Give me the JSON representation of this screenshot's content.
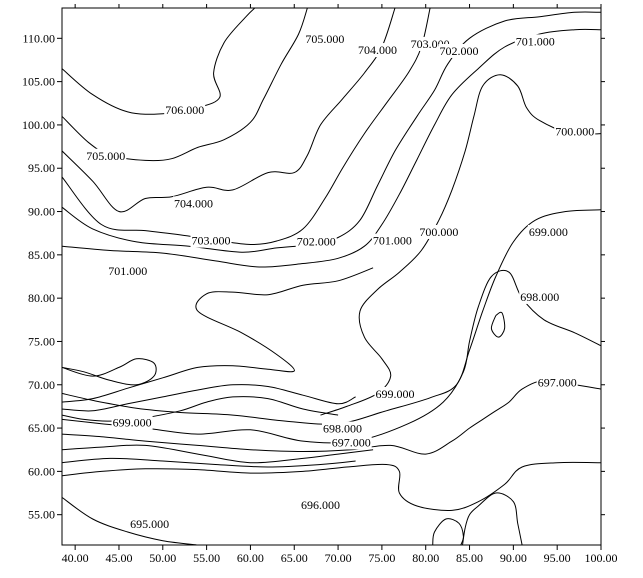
{
  "chart_data": {
    "type": "contour",
    "xlim": [
      38.5,
      100
    ],
    "ylim": [
      51.5,
      113.5
    ],
    "x_ticks": [
      "40.00",
      "45.00",
      "50.00",
      "55.00",
      "60.00",
      "65.00",
      "70.00",
      "75.00",
      "80.00",
      "85.00",
      "90.00",
      "95.00",
      "100.00"
    ],
    "y_ticks": [
      "55.00",
      "60.00",
      "65.00",
      "70.00",
      "75.00",
      "80.00",
      "85.00",
      "90.00",
      "95.00",
      "100.00",
      "105.00",
      "110.00"
    ],
    "x_tick_values": [
      40,
      45,
      50,
      55,
      60,
      65,
      70,
      75,
      80,
      85,
      90,
      95,
      100
    ],
    "y_tick_values": [
      55,
      60,
      65,
      70,
      75,
      80,
      85,
      90,
      95,
      100,
      105,
      110
    ],
    "grid": false,
    "contours": [
      {
        "level": "706.000",
        "points": [
          [
            38.5,
            106.5
          ],
          [
            42,
            103.5
          ],
          [
            46,
            101.5
          ],
          [
            50,
            101.3
          ],
          [
            54,
            102
          ],
          [
            56.5,
            103.2
          ],
          [
            55.8,
            106
          ],
          [
            57,
            109.5
          ],
          [
            59.5,
            112.5
          ],
          [
            60.5,
            113.5
          ]
        ],
        "label_at": [
          52.5,
          101.6
        ]
      },
      {
        "level": "705.000",
        "points": [
          [
            38.5,
            101
          ],
          [
            41.5,
            98
          ],
          [
            44,
            96.5
          ],
          [
            48,
            95.9
          ],
          [
            51,
            96.1
          ],
          [
            54,
            97.4
          ],
          [
            57,
            98.3
          ],
          [
            60,
            100.3
          ],
          [
            61.5,
            103
          ],
          [
            63.5,
            107
          ],
          [
            65.5,
            110.5
          ],
          [
            66.5,
            113.5
          ]
        ],
        "label_at": [
          43.5,
          96.3
        ],
        "label2": "705.000",
        "label2_at": [
          68.5,
          109.8
        ]
      },
      {
        "level": "704.000",
        "points": [
          [
            38.5,
            97
          ],
          [
            42,
            93.5
          ],
          [
            45,
            90
          ],
          [
            48,
            91.5
          ],
          [
            51,
            91.7
          ],
          [
            55,
            92.8
          ],
          [
            58,
            92.5
          ],
          [
            62,
            94.5
          ],
          [
            65,
            94.5
          ],
          [
            66.5,
            96.5
          ],
          [
            68,
            100
          ],
          [
            70.5,
            103
          ],
          [
            73,
            106
          ],
          [
            75,
            109
          ],
          [
            76.5,
            113.5
          ]
        ],
        "label_at": [
          53.5,
          90.8
        ],
        "label2": "704.000",
        "label2_at": [
          74.5,
          108.5
        ]
      },
      {
        "level": "703.000",
        "points": [
          [
            38.5,
            94
          ],
          [
            43,
            88.5
          ],
          [
            48,
            87.8
          ],
          [
            52,
            87.3
          ],
          [
            56,
            86.7
          ],
          [
            60,
            86.2
          ],
          [
            63,
            86.6
          ],
          [
            66,
            88
          ],
          [
            68.5,
            91.5
          ],
          [
            70.5,
            95
          ],
          [
            73,
            99
          ],
          [
            75.5,
            102.5
          ],
          [
            78,
            106
          ],
          [
            79.5,
            109
          ],
          [
            80.5,
            113.5
          ]
        ],
        "label_at": [
          55.5,
          86.5
        ],
        "label2": "703.000",
        "label2_at": [
          80.5,
          109.2
        ]
      },
      {
        "level": "702.000",
        "points": [
          [
            38.5,
            90.5
          ],
          [
            42,
            88
          ],
          [
            47,
            86.5
          ],
          [
            53,
            86
          ],
          [
            59,
            85.3
          ],
          [
            63,
            85.8
          ],
          [
            67,
            86.2
          ],
          [
            70,
            87
          ],
          [
            72.5,
            89
          ],
          [
            74.5,
            93
          ],
          [
            76.5,
            97
          ],
          [
            79,
            101
          ],
          [
            81,
            104
          ],
          [
            82.5,
            107
          ],
          [
            85,
            110
          ],
          [
            89,
            112
          ],
          [
            93,
            112.5
          ],
          [
            97,
            113
          ],
          [
            100,
            113
          ]
        ],
        "label_at": [
          67.5,
          86.4
        ],
        "label2": "702.000",
        "label2_at": [
          83.8,
          108.4
        ]
      },
      {
        "level": "701.000",
        "points": [
          [
            38.5,
            86
          ],
          [
            44,
            85.5
          ],
          [
            50,
            85.2
          ],
          [
            56,
            84.3
          ],
          [
            61,
            83.6
          ],
          [
            66,
            84
          ],
          [
            70,
            84.6
          ],
          [
            73,
            86
          ],
          [
            75,
            88.5
          ],
          [
            77,
            92
          ],
          [
            79,
            96
          ],
          [
            81,
            100
          ],
          [
            83,
            103.5
          ],
          [
            86,
            106.5
          ],
          [
            89,
            109
          ],
          [
            93,
            110.5
          ],
          [
            97,
            111
          ],
          [
            100,
            111
          ]
        ],
        "label_at": [
          92.5,
          109.5
        ],
        "label2": "701.000",
        "label2_at": [
          76.2,
          86.5
        ],
        "label3": "701.000",
        "label3_at": [
          46,
          83
        ]
      },
      {
        "level": "700.000",
        "points": [
          [
            100,
            99
          ],
          [
            96.5,
            99
          ],
          [
            93,
            100.5
          ],
          [
            91.5,
            102
          ],
          [
            90.5,
            104.5
          ],
          [
            88.5,
            105.8
          ],
          [
            86.5,
            104.5
          ],
          [
            85.5,
            101
          ],
          [
            84.5,
            97
          ],
          [
            83,
            92.5
          ],
          [
            81.5,
            89
          ],
          [
            79.5,
            85.5
          ],
          [
            77,
            83
          ],
          [
            74.5,
            81
          ],
          [
            72.5,
            78.5
          ],
          [
            73,
            75.5
          ],
          [
            75,
            73
          ],
          [
            76,
            71
          ],
          [
            74.5,
            69
          ],
          [
            71,
            67.5
          ],
          [
            68,
            66.5
          ]
        ],
        "label_at": [
          97,
          99.1
        ],
        "label2": "700.000",
        "label2_at": [
          81.5,
          87.5
        ]
      },
      {
        "level": "699.000",
        "points": [
          [
            100,
            90.2
          ],
          [
            96,
            90
          ],
          [
            92.5,
            89
          ],
          [
            90,
            86.5
          ],
          [
            88,
            82.5
          ],
          [
            86.5,
            78.5
          ],
          [
            85,
            74
          ],
          [
            83.5,
            70
          ],
          [
            80.5,
            68.5
          ],
          [
            75.5,
            67
          ],
          [
            70,
            65.5
          ],
          [
            64,
            65.8
          ],
          [
            58,
            66.5
          ],
          [
            52,
            66.8
          ],
          [
            47,
            67.3
          ],
          [
            42,
            68.2
          ],
          [
            38.5,
            69
          ]
        ],
        "label_at": [
          94,
          87.5
        ],
        "label2": "699.000",
        "label2_at": [
          76.5,
          68.8
        ],
        "label3": "699.000",
        "label3_at": [
          46.5,
          65.5
        ]
      },
      {
        "level": "698.000",
        "points": [
          [
            100,
            74.5
          ],
          [
            97,
            76
          ],
          [
            93.5,
            77.5
          ],
          [
            91,
            80
          ],
          [
            89.5,
            83
          ],
          [
            87.5,
            82.5
          ],
          [
            86,
            79
          ],
          [
            85,
            75
          ],
          [
            84.3,
            71.5
          ],
          [
            82,
            68
          ],
          [
            78,
            65.5
          ],
          [
            72,
            63.5
          ],
          [
            66,
            63.5
          ],
          [
            60,
            64.8
          ],
          [
            54,
            64.3
          ],
          [
            48,
            65
          ],
          [
            43,
            65.5
          ],
          [
            38.5,
            66
          ]
        ],
        "label_at": [
          93,
          80
        ],
        "label2": "698.000",
        "label2_at": [
          70.5,
          64.8
        ]
      },
      {
        "level": "697.000",
        "points": [
          [
            100,
            69.5
          ],
          [
            97,
            70
          ],
          [
            93.5,
            70.5
          ],
          [
            91,
            69.5
          ],
          [
            89.5,
            68
          ],
          [
            88,
            67
          ],
          [
            86.5,
            66
          ],
          [
            85,
            65
          ],
          [
            83,
            63.5
          ],
          [
            80,
            62
          ],
          [
            76,
            63
          ],
          [
            71.5,
            62.5
          ],
          [
            66,
            62.3
          ],
          [
            60,
            62.5
          ],
          [
            54,
            63
          ],
          [
            48,
            63.5
          ],
          [
            43,
            64
          ],
          [
            38.5,
            64.3
          ]
        ],
        "label_at": [
          95,
          70.1
        ],
        "label2": "697.000",
        "label2_at": [
          71.5,
          63.2
        ]
      },
      {
        "level": "696.000",
        "points": [
          [
            38.5,
            59.5
          ],
          [
            43,
            60
          ],
          [
            48,
            60.3
          ],
          [
            54,
            60.2
          ],
          [
            60,
            59.8
          ],
          [
            66,
            60
          ],
          [
            71,
            60.5
          ],
          [
            75.5,
            60.8
          ],
          [
            77,
            60
          ],
          [
            77,
            57.5
          ],
          [
            79,
            56
          ],
          [
            83,
            55.5
          ],
          [
            86,
            56.5
          ],
          [
            89,
            58.5
          ],
          [
            91,
            60.5
          ],
          [
            95,
            61
          ],
          [
            100,
            61
          ]
        ],
        "label_at": [
          68,
          56
        ],
        "label2": "696.000"
      },
      {
        "level": "695.000",
        "points": [
          [
            38.5,
            57
          ],
          [
            42,
            54.5
          ],
          [
            46,
            53
          ],
          [
            50,
            52
          ],
          [
            54,
            51.5
          ]
        ],
        "label_at": [
          48.5,
          53.8
        ]
      }
    ],
    "extra_contours": [
      {
        "points": [
          [
            38.5,
            66.5
          ],
          [
            41,
            66
          ],
          [
            44,
            65.8
          ],
          [
            48,
            66.2
          ],
          [
            52,
            67
          ],
          [
            55,
            68
          ],
          [
            58,
            68.6
          ],
          [
            62,
            68.4
          ],
          [
            66,
            67.2
          ],
          [
            70,
            66.5
          ]
        ]
      },
      {
        "points": [
          [
            38.5,
            67.2
          ],
          [
            42,
            67
          ],
          [
            46,
            67.8
          ],
          [
            50,
            68.6
          ],
          [
            54,
            69.4
          ],
          [
            58,
            70
          ],
          [
            62,
            69.8
          ],
          [
            66,
            68.8
          ],
          [
            70,
            67.8
          ],
          [
            72,
            68.6
          ]
        ]
      },
      {
        "points": [
          [
            38.5,
            68
          ],
          [
            42,
            68.4
          ],
          [
            46,
            69.6
          ],
          [
            50,
            70.8
          ],
          [
            54,
            72
          ],
          [
            58,
            72.2
          ],
          [
            62,
            71.8
          ],
          [
            65,
            71.6
          ],
          [
            63,
            73.5
          ],
          [
            59,
            76
          ],
          [
            54,
            78.5
          ],
          [
            55,
            80.5
          ],
          [
            58,
            80.7
          ],
          [
            62,
            80.4
          ],
          [
            66,
            81.5
          ],
          [
            70,
            82
          ],
          [
            74,
            83.5
          ]
        ]
      },
      {
        "points": [
          [
            38.5,
            72
          ],
          [
            42,
            71
          ],
          [
            45,
            72
          ],
          [
            47,
            73
          ],
          [
            49,
            72.5
          ],
          [
            49,
            71
          ],
          [
            47,
            70
          ],
          [
            44,
            70.5
          ],
          [
            41,
            71.5
          ],
          [
            38.5,
            72
          ]
        ]
      },
      {
        "points": [
          [
            38.5,
            62.5
          ],
          [
            43,
            62.8
          ],
          [
            48,
            63
          ],
          [
            54,
            62
          ],
          [
            60,
            61
          ],
          [
            66,
            61.5
          ],
          [
            70,
            62
          ],
          [
            74,
            62.5
          ]
        ]
      },
      {
        "points": [
          [
            38.5,
            61
          ],
          [
            44,
            61.5
          ],
          [
            50,
            61.2
          ],
          [
            56,
            60.8
          ],
          [
            62,
            60.5
          ],
          [
            68,
            60.8
          ],
          [
            72,
            61.2
          ]
        ]
      },
      {
        "points": [
          [
            80.8,
            51.5
          ],
          [
            81,
            53
          ],
          [
            82.3,
            54.5
          ],
          [
            83.8,
            54
          ],
          [
            84.3,
            52.5
          ],
          [
            84,
            51.5
          ]
        ]
      },
      {
        "points": [
          [
            91,
            51.5
          ],
          [
            90.5,
            54
          ],
          [
            90,
            56.5
          ],
          [
            88,
            57.5
          ],
          [
            86,
            56
          ],
          [
            85,
            55
          ],
          [
            84.5,
            53.5
          ],
          [
            84.2,
            51.5
          ]
        ]
      },
      {
        "points": [
          [
            88,
            78
          ],
          [
            87.5,
            76.5
          ],
          [
            88.3,
            75.5
          ],
          [
            89,
            76.5
          ],
          [
            88.7,
            78.3
          ],
          [
            88,
            78
          ]
        ]
      }
    ]
  }
}
